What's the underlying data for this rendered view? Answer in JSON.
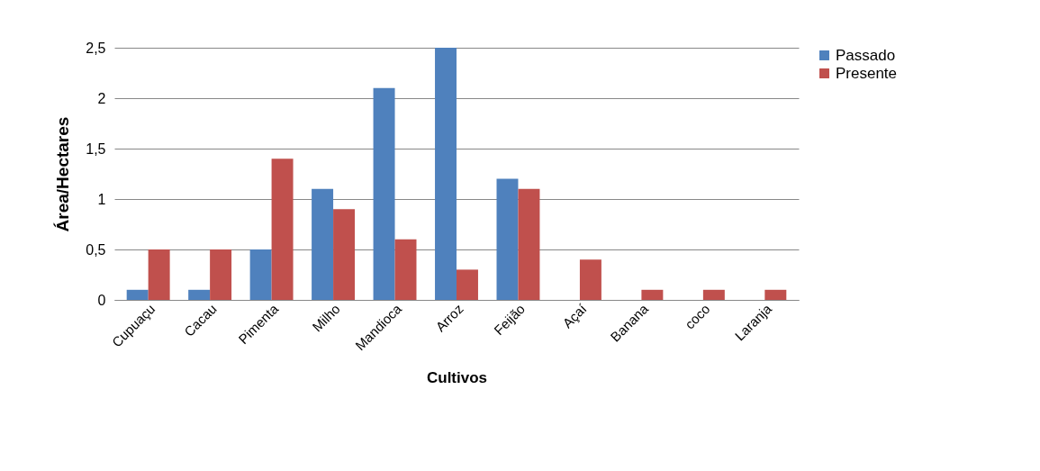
{
  "chart_data": {
    "type": "bar",
    "xlabel": "Cultivos",
    "ylabel": "Área/Hectares",
    "categories": [
      "Cupuaçu",
      "Cacau",
      "Pimenta",
      "Milho",
      "Mandioca",
      "Arroz",
      "Feijão",
      "Açaí",
      "Banana",
      "coco",
      "Laranja"
    ],
    "series": [
      {
        "name": "Passado",
        "color": "#4f81bd",
        "values": [
          0.1,
          0.1,
          0.5,
          1.1,
          2.1,
          2.5,
          1.2,
          0,
          0,
          0,
          0
        ]
      },
      {
        "name": "Presente",
        "color": "#c0504d",
        "values": [
          0.5,
          0.5,
          1.4,
          0.9,
          0.6,
          0.3,
          1.1,
          0.4,
          0.1,
          0.1,
          0.1
        ]
      }
    ],
    "ylim": [
      0,
      2.5
    ],
    "yticks": [
      0,
      {
        "value": 0.5,
        "label": "0,5"
      },
      1,
      {
        "value": 1.5,
        "label": "1,5"
      },
      2,
      {
        "value": 2.5,
        "label": "2,5"
      }
    ],
    "grid": "y",
    "legend": "right"
  }
}
